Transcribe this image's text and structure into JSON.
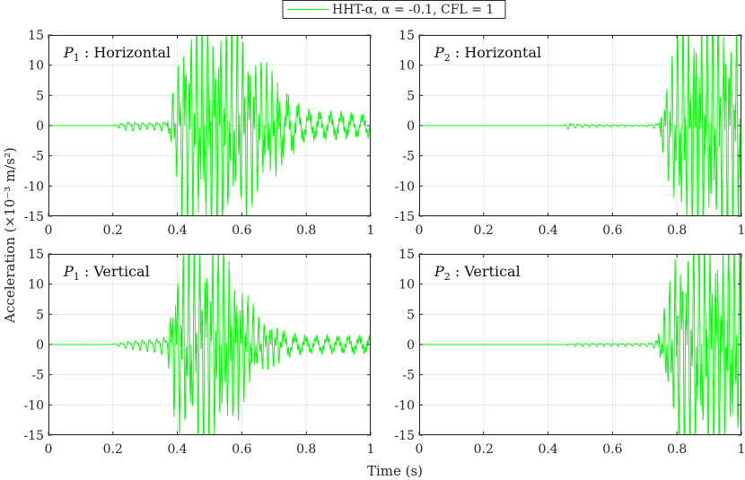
{
  "chart_data": [
    {
      "type": "line",
      "panel_title": "P1 : Horizontal",
      "panel_title_main": "P",
      "panel_title_sub": "1",
      "panel_title_rest": " : Horizontal",
      "xlim": [
        0,
        1
      ],
      "ylim": [
        -15,
        15
      ],
      "xticks": [
        "0",
        "0.2",
        "0.4",
        "0.6",
        "0.8",
        "1"
      ],
      "yticks": [
        "15",
        "10",
        "5",
        "0",
        "-5",
        "-10",
        "-15"
      ],
      "grid": true,
      "series": [
        {
          "name": "HHT-α, α = -0.1, CFL = 1",
          "color": "#00ff00",
          "onset": 0.2,
          "strong_start": 0.37,
          "peak_time": 0.5,
          "envelope_keypoints": [
            [
              0.0,
              0.0
            ],
            [
              0.2,
              0.1
            ],
            [
              0.25,
              1.0
            ],
            [
              0.3,
              0.6
            ],
            [
              0.37,
              1.0
            ],
            [
              0.39,
              5.0
            ],
            [
              0.42,
              13.0
            ],
            [
              0.5,
              15.0
            ],
            [
              0.6,
              12.0
            ],
            [
              0.65,
              9.0
            ],
            [
              0.75,
              5.0
            ],
            [
              0.8,
              2.5
            ],
            [
              1.0,
              2.0
            ]
          ]
        }
      ]
    },
    {
      "type": "line",
      "panel_title": "P2 : Horizontal",
      "panel_title_main": "P",
      "panel_title_sub": "2",
      "panel_title_rest": " : Horizontal",
      "xlim": [
        0,
        1
      ],
      "ylim": [
        -15,
        15
      ],
      "xticks": [
        "0",
        "0.2",
        "0.4",
        "0.6",
        "0.8",
        "1"
      ],
      "yticks": [
        "15",
        "10",
        "5",
        "0",
        "-5",
        "-10",
        "-15"
      ],
      "grid": true,
      "series": [
        {
          "name": "HHT-α, α = -0.1, CFL = 1",
          "color": "#00ff00",
          "onset": 0.45,
          "strong_start": 0.75,
          "peak_time": 0.85,
          "envelope_keypoints": [
            [
              0.0,
              0.0
            ],
            [
              0.44,
              0.0
            ],
            [
              0.46,
              0.6
            ],
            [
              0.5,
              0.3
            ],
            [
              0.7,
              0.1
            ],
            [
              0.74,
              0.5
            ],
            [
              0.76,
              4.0
            ],
            [
              0.8,
              13.0
            ],
            [
              0.86,
              15.0
            ],
            [
              1.0,
              14.0
            ]
          ]
        }
      ]
    },
    {
      "type": "line",
      "panel_title": "P1 : Vertical",
      "panel_title_main": "P",
      "panel_title_sub": "1",
      "panel_title_rest": " : Vertical",
      "xlim": [
        0,
        1
      ],
      "ylim": [
        -15,
        15
      ],
      "xticks": [
        "0",
        "0.2",
        "0.4",
        "0.6",
        "0.8",
        "1"
      ],
      "yticks": [
        "15",
        "10",
        "5",
        "0",
        "-5",
        "-10",
        "-15"
      ],
      "grid": true,
      "series": [
        {
          "name": "HHT-α, α = -0.1, CFL = 1",
          "color": "#00ff00",
          "onset": 0.2,
          "strong_start": 0.37,
          "peak_time": 0.5,
          "envelope_keypoints": [
            [
              0.0,
              0.0
            ],
            [
              0.2,
              0.1
            ],
            [
              0.25,
              0.8
            ],
            [
              0.33,
              1.3
            ],
            [
              0.37,
              2.0
            ],
            [
              0.39,
              9.0
            ],
            [
              0.42,
              13.0
            ],
            [
              0.5,
              15.0
            ],
            [
              0.58,
              10.0
            ],
            [
              0.65,
              3.5
            ],
            [
              0.75,
              2.0
            ],
            [
              0.8,
              1.5
            ],
            [
              1.0,
              1.5
            ]
          ]
        }
      ]
    },
    {
      "type": "line",
      "panel_title": "P2 : Vertical",
      "panel_title_main": "P",
      "panel_title_sub": "2",
      "panel_title_rest": " : Vertical",
      "xlim": [
        0,
        1
      ],
      "ylim": [
        -15,
        15
      ],
      "xticks": [
        "0",
        "0.2",
        "0.4",
        "0.6",
        "0.8",
        "1"
      ],
      "yticks": [
        "15",
        "10",
        "5",
        "0",
        "-5",
        "-10",
        "-15"
      ],
      "grid": true,
      "series": [
        {
          "name": "HHT-α, α = -0.1, CFL = 1",
          "color": "#00ff00",
          "onset": 0.45,
          "strong_start": 0.74,
          "peak_time": 0.85,
          "envelope_keypoints": [
            [
              0.0,
              0.0
            ],
            [
              0.44,
              0.05
            ],
            [
              0.5,
              0.35
            ],
            [
              0.7,
              0.3
            ],
            [
              0.73,
              0.6
            ],
            [
              0.75,
              2.0
            ],
            [
              0.77,
              7.0
            ],
            [
              0.8,
              12.0
            ],
            [
              0.85,
              15.0
            ],
            [
              1.0,
              14.0
            ]
          ]
        }
      ]
    }
  ],
  "legend": {
    "text": "HHT-α, α = -0.1, CFL = 1",
    "placement": "top-center",
    "color": "#00ff00"
  },
  "xlabel": "Time (s)",
  "ylabel": "Acceleration (×10⁻³ m/s²)"
}
